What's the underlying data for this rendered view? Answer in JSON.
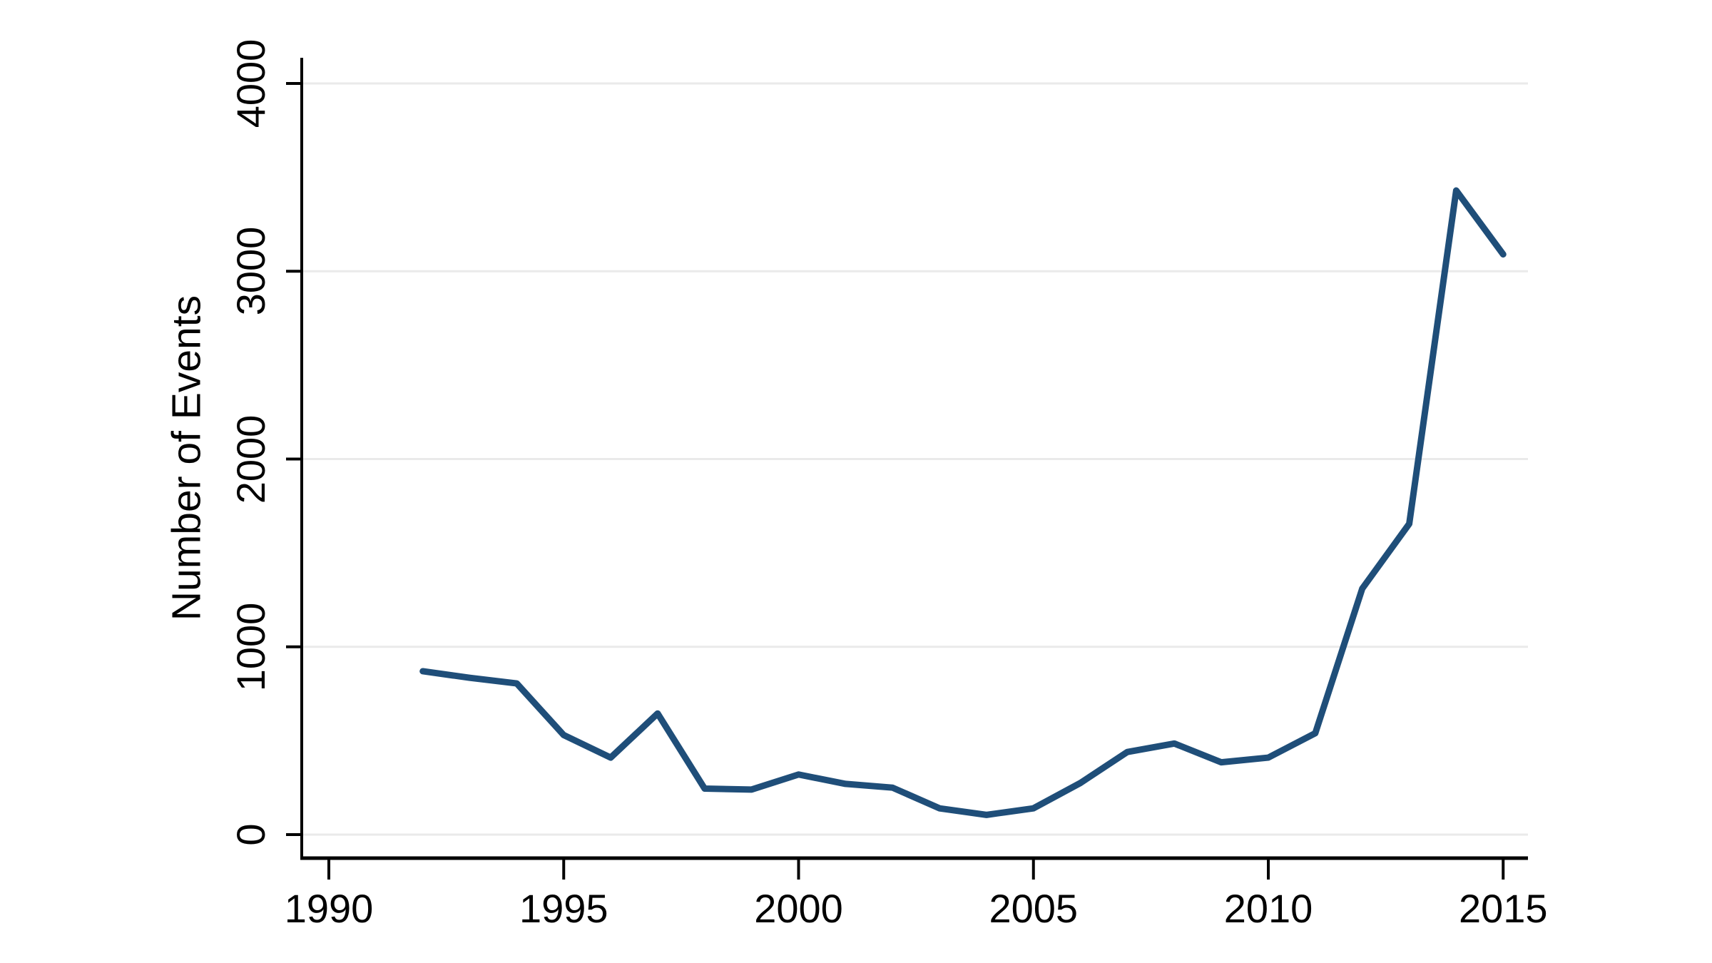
{
  "chart_data": {
    "type": "line",
    "title": "",
    "xlabel": "",
    "ylabel": "Number of Events",
    "x": [
      1992,
      1993,
      1994,
      1995,
      1996,
      1997,
      1998,
      1999,
      2000,
      2001,
      2002,
      2003,
      2004,
      2005,
      2006,
      2007,
      2008,
      2009,
      2010,
      2011,
      2012,
      2013,
      2014,
      2015
    ],
    "values": [
      870,
      835,
      805,
      530,
      410,
      645,
      245,
      240,
      320,
      270,
      250,
      140,
      105,
      140,
      275,
      440,
      485,
      385,
      410,
      540,
      1310,
      1655,
      3430,
      3090
    ],
    "x_ticks": [
      1990,
      1995,
      2000,
      2005,
      2010,
      2015
    ],
    "y_ticks": [
      0,
      1000,
      2000,
      3000,
      4000
    ],
    "xlim": [
      1989.4,
      2015.5
    ],
    "ylim": [
      0,
      4135
    ],
    "grid": "horizontal-only",
    "legend_position": "none",
    "colors": {
      "line": "#1f4e79",
      "gridline": "#eaeaea",
      "axis": "#000000",
      "text": "#000000",
      "background": "#ffffff"
    }
  }
}
